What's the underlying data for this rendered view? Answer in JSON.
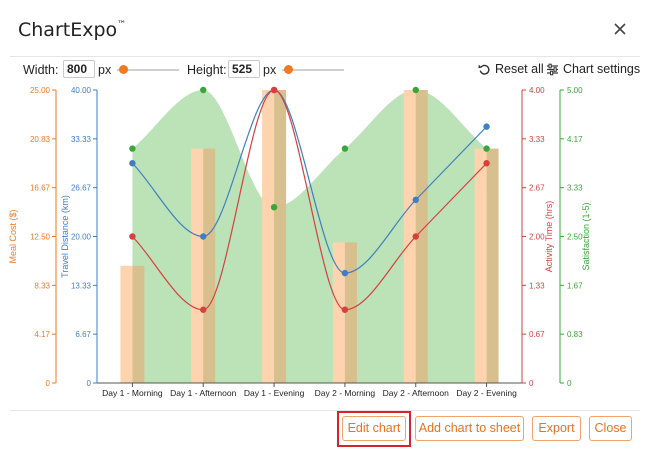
{
  "dialog": {
    "title": "ChartExpo",
    "trademark": "™",
    "close_icon": "close-icon"
  },
  "toolbar": {
    "width_label": "Width:",
    "width_value": "800",
    "width_unit": "px",
    "height_label": "Height:",
    "height_value": "525",
    "height_unit": "px",
    "reset_label": "Reset all",
    "reset_icon": "reset-icon",
    "settings_label": "Chart settings",
    "settings_icon": "sliders-icon"
  },
  "buttons": {
    "edit": "Edit chart",
    "add": "Add chart to sheet",
    "export": "Export",
    "close": "Close"
  },
  "colors": {
    "accent": "#f07a22",
    "highlight": "#d8232a",
    "meal": "#f6a04d",
    "travel": "#3f7fc1",
    "activity": "#d83f3f",
    "satisfaction": "#3aa53a"
  },
  "chart_data": {
    "type": "combo",
    "categories": [
      "Day 1 - Morning",
      "Day 1 - Afternoon",
      "Day 1 - Evening",
      "Day 2 - Morning",
      "Day 2 - Afternoon",
      "Day 2 - Evening"
    ],
    "series": [
      {
        "name": "Meal Cost ($)",
        "type": "bar",
        "axis": "y1",
        "values": [
          10,
          20,
          25,
          12,
          25,
          20
        ]
      },
      {
        "name": "Satisfaction (1-5)",
        "type": "area",
        "axis": "y4",
        "values": [
          4,
          5,
          3,
          4,
          5,
          4
        ]
      },
      {
        "name": "Travel Distance (km)",
        "type": "line",
        "axis": "y2",
        "values": [
          30,
          20,
          40,
          15,
          25,
          35
        ]
      },
      {
        "name": "Activity Time (hrs)",
        "type": "line",
        "axis": "y3",
        "values": [
          2,
          1,
          4,
          1,
          2,
          3
        ]
      }
    ],
    "axes": {
      "y1": {
        "label": "Meal Cost ($)",
        "ticks": [
          "0",
          "4.17",
          "8.33",
          "12.50",
          "16.67",
          "20.83",
          "25.00"
        ],
        "range": [
          0,
          25
        ],
        "color": "#f07a22"
      },
      "y2": {
        "label": "Travel Distance (km)",
        "ticks": [
          "0",
          "6.67",
          "13.33",
          "20.00",
          "26.67",
          "33.33",
          "40.00"
        ],
        "range": [
          0,
          40
        ],
        "color": "#3f7fc1"
      },
      "y3": {
        "label": "Activity Time (hrs)",
        "ticks": [
          "0",
          "0.67",
          "1.33",
          "2.00",
          "2.67",
          "3.33",
          "4.00"
        ],
        "range": [
          0,
          4
        ],
        "color": "#d83f3f"
      },
      "y4": {
        "label": "Satisfaction (1-5)",
        "ticks": [
          "0",
          "0.83",
          "1.67",
          "2.50",
          "3.33",
          "4.17",
          "5.00"
        ],
        "range": [
          0,
          5
        ],
        "color": "#3aa53a"
      }
    }
  }
}
